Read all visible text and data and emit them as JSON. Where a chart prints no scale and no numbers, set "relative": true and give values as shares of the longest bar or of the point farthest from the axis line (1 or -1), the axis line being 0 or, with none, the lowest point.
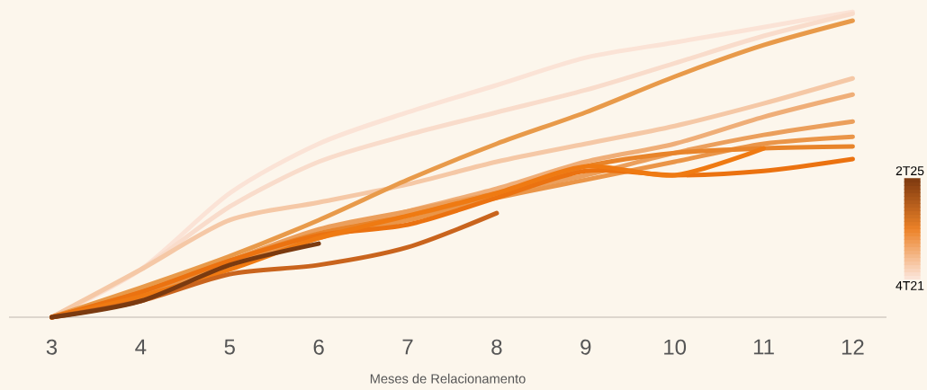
{
  "chart_data": {
    "type": "line",
    "relative": true,
    "xlabel": "Meses de Relacionamento",
    "marker": "none",
    "line_style": "solid",
    "x": [
      3,
      4,
      5,
      6,
      7,
      8,
      9,
      10,
      11,
      12
    ],
    "xlim": [
      2.52,
      12.38
    ],
    "xticks": [
      3,
      4,
      5,
      6,
      7,
      8,
      9,
      10,
      11,
      12
    ],
    "annotations": [
      "2T25",
      "4T21"
    ],
    "series": [
      {
        "color": "#fbe3d6",
        "values": [
          0,
          0.156,
          0.406,
          0.568,
          0.671,
          0.76,
          0.85,
          0.9,
          0.95,
          1.0
        ]
      },
      {
        "color": "#f9dccb",
        "values": [
          0,
          0.156,
          0.362,
          0.509,
          0.597,
          0.671,
          0.744,
          0.832,
          0.921,
          0.994
        ]
      },
      {
        "color": "#f5c8a6",
        "values": [
          0,
          0.156,
          0.318,
          0.376,
          0.435,
          0.509,
          0.568,
          0.626,
          0.7,
          0.782
        ]
      },
      {
        "color": "#e89a4a",
        "values": [
          0,
          0.097,
          0.2,
          0.318,
          0.45,
          0.568,
          0.671,
          0.788,
          0.891,
          0.971
        ]
      },
      {
        "color": "#efae78",
        "values": [
          0,
          0.082,
          0.185,
          0.274,
          0.347,
          0.421,
          0.509,
          0.568,
          0.656,
          0.729
        ]
      },
      {
        "color": "#eb9f5c",
        "values": [
          0,
          0.082,
          0.185,
          0.288,
          0.347,
          0.406,
          0.465,
          0.538,
          0.597,
          0.641
        ]
      },
      {
        "color": "#ea9548",
        "values": [
          0,
          0.068,
          0.171,
          0.259,
          0.318,
          0.391,
          0.45,
          0.509,
          0.568,
          0.591
        ]
      },
      {
        "color": "#e8842a",
        "values": [
          0,
          0.082,
          0.185,
          0.274,
          0.332,
          0.406,
          0.494,
          0.538,
          0.553,
          0.559
        ]
      },
      {
        "color": "#eb7210",
        "values": [
          0,
          0.082,
          0.185,
          0.268,
          0.303,
          0.391,
          0.479,
          0.465,
          0.479,
          0.518
        ]
      },
      {
        "color": "#ef7a12",
        "x": [
          3,
          4,
          5,
          6,
          7,
          8,
          9,
          10,
          11
        ],
        "values": [
          0,
          0.068,
          0.156,
          0.259,
          0.332,
          0.406,
          0.494,
          0.465,
          0.553
        ]
      },
      {
        "color": "#c9641d",
        "x": [
          3,
          4,
          5,
          6,
          7,
          8
        ],
        "values": [
          0,
          0.053,
          0.141,
          0.171,
          0.229,
          0.341
        ]
      },
      {
        "color": "#7a3a10",
        "x": [
          3,
          4,
          5,
          6
        ],
        "values": [
          0,
          0.053,
          0.171,
          0.241
        ]
      }
    ]
  }
}
